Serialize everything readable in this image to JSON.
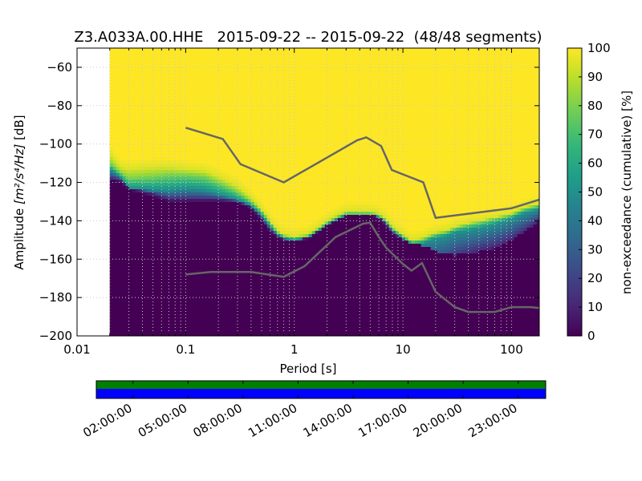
{
  "chart_data": {
    "type": "heatmap",
    "title": "Z3.A033A.00.HHE   2015-09-22 -- 2015-09-22  (48/48 segments)",
    "xlabel": "Period [s]",
    "ylabel_prefix": "Amplitude ",
    "ylabel_units": "[m²/s⁴/Hz]",
    "ylabel_suffix": " [dB]",
    "x_scale": "log",
    "xlim": [
      0.01,
      180
    ],
    "ylim": [
      -200,
      -50
    ],
    "x_ticks": [
      {
        "value": 0.01,
        "label": "0.01"
      },
      {
        "value": 0.1,
        "label": "0.1"
      },
      {
        "value": 1,
        "label": "1"
      },
      {
        "value": 10,
        "label": "10"
      },
      {
        "value": 100,
        "label": "100"
      }
    ],
    "y_ticks": [
      {
        "value": -60,
        "label": "−60"
      },
      {
        "value": -80,
        "label": "−80"
      },
      {
        "value": -100,
        "label": "−100"
      },
      {
        "value": -120,
        "label": "−120"
      },
      {
        "value": -140,
        "label": "−140"
      },
      {
        "value": -160,
        "label": "−160"
      },
      {
        "value": -180,
        "label": "−180"
      },
      {
        "value": -200,
        "label": "−200"
      }
    ],
    "grid": true,
    "data_period_min": 0.02,
    "colormap": [
      "#440154",
      "#482878",
      "#3e4989",
      "#31688e",
      "#26828e",
      "#1f9e89",
      "#35b779",
      "#6ece58",
      "#b5de2b",
      "#fde725"
    ],
    "colorbar": {
      "label": "non-exceedance (cumulative) [%]",
      "range": [
        0,
        100
      ],
      "ticks": [
        {
          "value": 0,
          "label": "0"
        },
        {
          "value": 10,
          "label": "10"
        },
        {
          "value": 20,
          "label": "20"
        },
        {
          "value": 30,
          "label": "30"
        },
        {
          "value": 40,
          "label": "40"
        },
        {
          "value": 50,
          "label": "50"
        },
        {
          "value": 60,
          "label": "60"
        },
        {
          "value": 70,
          "label": "70"
        },
        {
          "value": 80,
          "label": "80"
        },
        {
          "value": 90,
          "label": "90"
        },
        {
          "value": 100,
          "label": "100"
        }
      ]
    },
    "bands": {
      "period": [
        0.02,
        0.025,
        0.03,
        0.05,
        0.07,
        0.1,
        0.15,
        0.2,
        0.3,
        0.4,
        0.5,
        0.6,
        0.7,
        0.8,
        1.0,
        1.3,
        1.6,
        2.0,
        2.5,
        3.0,
        4.0,
        5.0,
        6.0,
        7.0,
        8.0,
        10,
        12,
        15,
        18,
        20,
        25,
        30,
        40,
        50,
        70,
        100,
        130,
        180
      ],
      "p0": [
        -119,
        -120,
        -124,
        -128,
        -130,
        -130,
        -130,
        -130,
        -131,
        -134,
        -140,
        -146,
        -149,
        -150,
        -151,
        -150,
        -147,
        -143,
        -140,
        -138,
        -137,
        -137,
        -139,
        -143,
        -147,
        -150,
        -152,
        -153,
        -154,
        -156,
        -157,
        -158,
        -157,
        -156,
        -155,
        -150,
        -146,
        -141
      ],
      "p10": [
        -118,
        -119,
        -123,
        -126,
        -129,
        -129,
        -129,
        -129,
        -130,
        -133,
        -139,
        -145,
        -148,
        -150,
        -150,
        -149,
        -146,
        -142,
        -139,
        -137,
        -137,
        -137,
        -138,
        -142,
        -146,
        -150,
        -154,
        -158,
        -162,
        -164,
        -163,
        -160,
        -158,
        -156,
        -154,
        -150,
        -146,
        -140
      ],
      "p50": [
        -113,
        -117,
        -123,
        -124,
        -124,
        -123,
        -124,
        -126,
        -129,
        -132,
        -137,
        -143,
        -147,
        -149,
        -150,
        -149,
        -146,
        -142,
        -139,
        -137,
        -137,
        -137,
        -138,
        -141,
        -145,
        -149,
        -152,
        -152,
        -150,
        -149,
        -148,
        -146,
        -145,
        -144,
        -142,
        -139,
        -136,
        -134
      ],
      "p80": [
        -110,
        -115,
        -118,
        -117,
        -116,
        -116,
        -117,
        -120,
        -125,
        -130,
        -135,
        -141,
        -146,
        -148,
        -149,
        -148,
        -145,
        -141,
        -138,
        -136,
        -136,
        -136,
        -137,
        -140,
        -144,
        -148,
        -151,
        -150,
        -148,
        -147,
        -146,
        -144,
        -142,
        -141,
        -139,
        -137,
        -134,
        -132
      ],
      "p95": [
        -105,
        -112,
        -113,
        -112,
        -112,
        -113,
        -114,
        -117,
        -122,
        -128,
        -134,
        -140,
        -145,
        -147,
        -148,
        -147,
        -144,
        -140,
        -137,
        -135,
        -135,
        -135,
        -136,
        -139,
        -143,
        -147,
        -150,
        -149,
        -147,
        -146,
        -145,
        -143,
        -141,
        -140,
        -138,
        -136,
        -133,
        -131
      ]
    },
    "series": [
      {
        "period": [
          0.1,
          0.22,
          0.32,
          0.8,
          3.8,
          4.6,
          6.3,
          7.9,
          15.4,
          20,
          100,
          180
        ],
        "values": [
          -91.5,
          -97.4,
          -110.5,
          -120.0,
          -98.0,
          -96.5,
          -101.0,
          -113.5,
          -120.0,
          -138.5,
          -133.5,
          -129.0
        ]
      },
      {
        "period": [
          0.1,
          0.17,
          0.4,
          0.8,
          1.24,
          2.4,
          4.3,
          5.0,
          6.0,
          7.0,
          10,
          12,
          15,
          20,
          30,
          40,
          70,
          100,
          150,
          180
        ],
        "values": [
          -168.0,
          -166.7,
          -166.7,
          -169.2,
          -163.7,
          -148.5,
          -141.5,
          -141.0,
          -148.5,
          -154.0,
          -162.5,
          -166.0,
          -162.0,
          -177.0,
          -185.0,
          -187.5,
          -187.5,
          -185.0,
          -185.0,
          -185.5
        ]
      }
    ],
    "time_axis": {
      "tick_labels": [
        "02:00:00",
        "05:00:00",
        "08:00:00",
        "11:00:00",
        "14:00:00",
        "17:00:00",
        "20:00:00",
        "23:00:00"
      ],
      "tick_hours": [
        2,
        5,
        8,
        11,
        14,
        17,
        20,
        23
      ],
      "range_hours": [
        0,
        24.5
      ],
      "data_coverage_color": "#008000",
      "processed_segments_color": "#0000ff"
    }
  }
}
